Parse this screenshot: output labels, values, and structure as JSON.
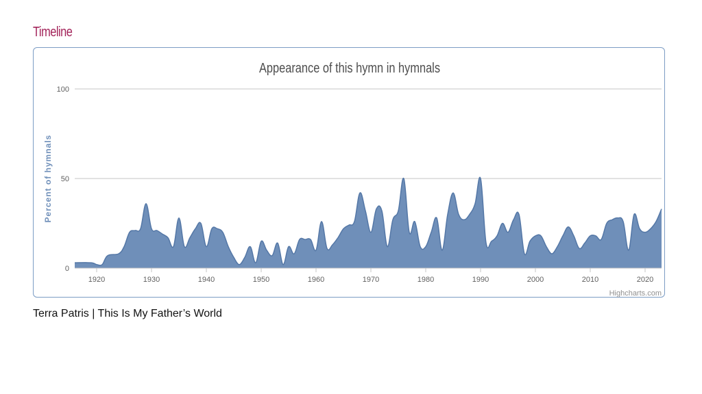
{
  "section": {
    "title": "Timeline"
  },
  "chart_data": {
    "type": "area",
    "title": "Appearance of this hymn in hymnals",
    "xlabel": "",
    "ylabel": "Percent of hymnals",
    "credits": "Highcharts.com",
    "xlim": [
      1916,
      2023
    ],
    "ylim": [
      0,
      100
    ],
    "x_ticks": [
      1920,
      1930,
      1940,
      1950,
      1960,
      1970,
      1980,
      1990,
      2000,
      2010,
      2020
    ],
    "y_ticks": [
      0,
      50,
      100
    ],
    "grid": true,
    "colors": {
      "fill": "#6f8fb9",
      "line": "#5477a6",
      "grid": "#c6c6c6",
      "text": "#606060"
    },
    "x": [
      1916,
      1919,
      1920,
      1921,
      1922,
      1924,
      1925,
      1926,
      1927,
      1928,
      1929,
      1930,
      1931,
      1932,
      1933,
      1934,
      1935,
      1936,
      1937,
      1938,
      1939,
      1940,
      1941,
      1942,
      1943,
      1944,
      1945,
      1946,
      1947,
      1948,
      1949,
      1950,
      1951,
      1952,
      1953,
      1954,
      1955,
      1956,
      1957,
      1958,
      1959,
      1960,
      1961,
      1962,
      1963,
      1964,
      1965,
      1966,
      1967,
      1968,
      1969,
      1970,
      1971,
      1972,
      1973,
      1974,
      1975,
      1976,
      1977,
      1978,
      1979,
      1980,
      1981,
      1982,
      1983,
      1984,
      1985,
      1986,
      1987,
      1988,
      1989,
      1990,
      1991,
      1992,
      1993,
      1994,
      1995,
      1996,
      1997,
      1998,
      1999,
      2000,
      2001,
      2002,
      2003,
      2004,
      2005,
      2006,
      2007,
      2008,
      2009,
      2010,
      2011,
      2012,
      2013,
      2014,
      2015,
      2016,
      2017,
      2018,
      2019,
      2020,
      2021,
      2022,
      2023
    ],
    "series": [
      {
        "values": [
          3,
          3,
          2,
          2,
          7,
          8,
          12,
          20,
          21,
          22,
          36,
          22,
          21,
          19,
          17,
          12,
          28,
          12,
          17,
          22,
          25,
          12,
          22,
          22,
          20,
          12,
          6,
          2,
          6,
          12,
          3,
          15,
          10,
          7,
          14,
          2,
          12,
          8,
          16,
          16,
          16,
          10,
          26,
          11,
          13,
          17,
          22,
          24,
          26,
          42,
          32,
          20,
          33,
          32,
          12,
          27,
          32,
          50,
          20,
          26,
          12,
          12,
          20,
          28,
          10,
          30,
          42,
          30,
          27,
          30,
          36,
          50,
          14,
          15,
          18,
          25,
          20,
          27,
          30,
          8,
          15,
          18,
          18,
          12,
          8,
          12,
          18,
          23,
          18,
          11,
          14,
          18,
          18,
          16,
          25,
          27,
          28,
          26,
          10,
          30,
          22,
          20,
          22,
          26,
          33
        ]
      }
    ]
  },
  "footer": {
    "caption": "Terra Patris | This Is My Father’s World"
  }
}
